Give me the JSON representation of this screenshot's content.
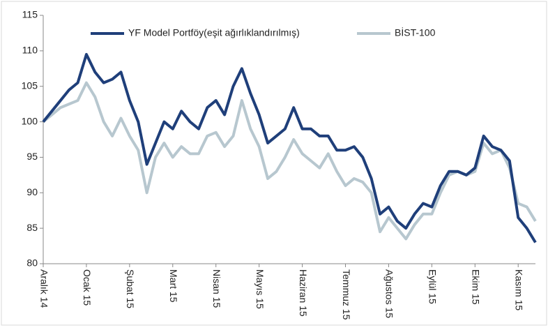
{
  "chart_data": {
    "type": "line",
    "categories": [
      "Aralık 14",
      null,
      null,
      null,
      null,
      "Ocak 15",
      null,
      null,
      null,
      null,
      "Şubat 15",
      null,
      null,
      null,
      null,
      "Mart 15",
      null,
      null,
      null,
      null,
      "Nisan 15",
      null,
      null,
      null,
      null,
      "Mayıs 15",
      null,
      null,
      null,
      null,
      "Haziran 15",
      null,
      null,
      null,
      null,
      "Temmuz 15",
      null,
      null,
      null,
      null,
      "Ağustos 15",
      null,
      null,
      null,
      null,
      "Eylül 15",
      null,
      null,
      null,
      null,
      "Ekim 15",
      null,
      null,
      null,
      null,
      "Kasım 15",
      null,
      null
    ],
    "series": [
      {
        "name": "YF Model Portföy(eşit ağırlıklandırılmış)",
        "color": "#1f3f7a",
        "values": [
          100,
          101.5,
          103,
          104.5,
          105.5,
          109.5,
          107,
          105.5,
          106,
          107,
          103,
          100,
          94,
          97,
          100,
          99,
          101.5,
          100,
          99,
          102,
          103,
          101,
          105,
          107.5,
          104,
          101,
          97,
          98,
          99,
          102,
          99,
          99,
          98,
          98,
          96,
          96,
          96.5,
          95,
          92,
          87,
          88,
          86,
          85,
          87,
          88.5,
          88,
          91,
          93,
          93,
          92.5,
          93.5,
          98,
          96.5,
          96,
          94.5,
          86.5,
          85,
          83
        ]
      },
      {
        "name": "BİST-100",
        "color": "#b7c7cf",
        "values": [
          100,
          101,
          102,
          102.5,
          103,
          105.5,
          103.5,
          100,
          98,
          100.5,
          98,
          96,
          90,
          95,
          97,
          95,
          96.5,
          95.5,
          95.5,
          98,
          98.5,
          96.5,
          98,
          103,
          99,
          96.5,
          92,
          93,
          95,
          97.5,
          95.5,
          94.5,
          93.5,
          95.5,
          93,
          91,
          92,
          91.5,
          90,
          84.5,
          86.5,
          85,
          83.5,
          85.5,
          87,
          87,
          90,
          92.5,
          93,
          92.5,
          93,
          97,
          95.5,
          96,
          93.5,
          88.5,
          88,
          86
        ]
      }
    ],
    "ylim": [
      80,
      115
    ],
    "yticks": [
      80,
      85,
      90,
      95,
      100,
      105,
      110,
      115
    ],
    "legend": "top"
  }
}
